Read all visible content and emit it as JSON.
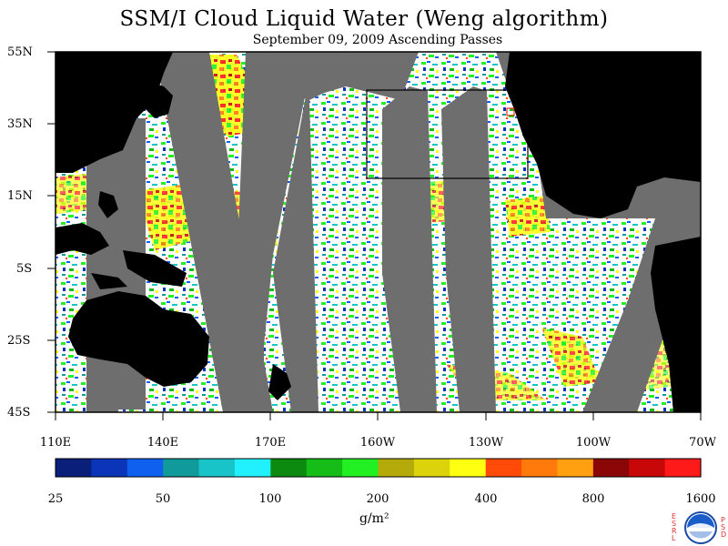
{
  "title": "SSM/I Cloud Liquid Water (Weng algorithm)",
  "subtitle": "September 09, 2009  Ascending Passes",
  "lat_labels": [
    "55N",
    "35N",
    "15N",
    "5S",
    "25S",
    "45S"
  ],
  "lon_labels": [
    "110E",
    "140E",
    "170E",
    "160W",
    "130W",
    "100W",
    "70W"
  ],
  "colorbar": {
    "labels": [
      "25",
      "50",
      "100",
      "200",
      "400",
      "800",
      "1600"
    ],
    "colors": [
      "#0a1f7a",
      "#0a35b8",
      "#1060f0",
      "#119a9a",
      "#18c4c8",
      "#20f0ff",
      "#0c8a10",
      "#17bd17",
      "#22f022",
      "#b4aa0a",
      "#dcd30c",
      "#ffff12",
      "#ff4a08",
      "#ff7a0a",
      "#ffa010",
      "#8b0606",
      "#c80808",
      "#ff1a1a"
    ],
    "units": "g/m²"
  },
  "logo": {
    "name": "noaa-logo",
    "left_text": "ESRL",
    "right_text": "PSD"
  }
}
